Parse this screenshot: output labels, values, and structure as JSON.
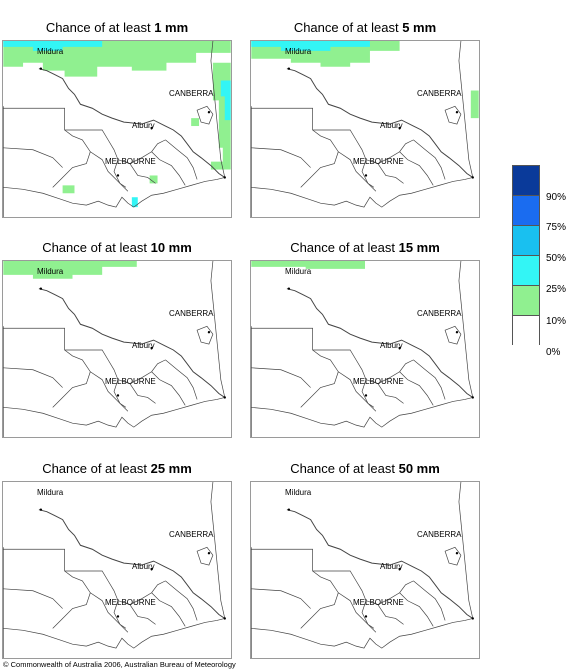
{
  "panels": [
    {
      "prefix": "Chance of at least ",
      "amount": "1 mm"
    },
    {
      "prefix": "Chance of at least ",
      "amount": "5 mm"
    },
    {
      "prefix": "Chance of at least ",
      "amount": "10 mm"
    },
    {
      "prefix": "Chance of at least ",
      "amount": "15 mm"
    },
    {
      "prefix": "Chance of at least ",
      "amount": "25 mm"
    },
    {
      "prefix": "Chance of at least ",
      "amount": "50 mm"
    }
  ],
  "cities": {
    "mildura": "Mildura",
    "canberra": "CANBERRA",
    "albury": "Albury",
    "melbourne": "MELBOURNE"
  },
  "legend": {
    "labels": [
      "90%",
      "75%",
      "50%",
      "25%",
      "10%",
      "0%"
    ],
    "colors": [
      "#0a3a9a",
      "#1a6cf0",
      "#19c0f0",
      "#33f5f5",
      "#90f090",
      "#ffffff"
    ]
  },
  "copyright": "© Commonwealth of Australia 2006, Australian Bureau of Meteorology",
  "colors": {
    "band_10_25": "#90f090",
    "band_25_50": "#33f5f5",
    "band_50_75": "#19c0f0"
  }
}
